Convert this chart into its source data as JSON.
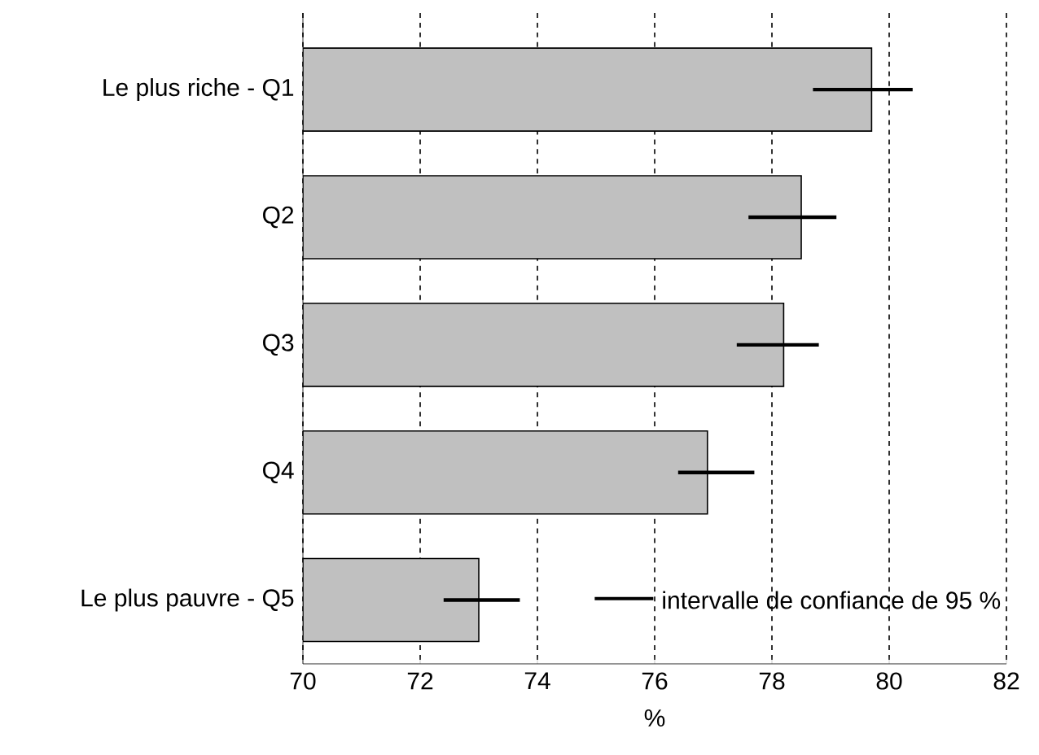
{
  "chart_data": {
    "type": "bar",
    "orientation": "horizontal",
    "categories": [
      "Le plus riche - Q1",
      "Q2",
      "Q3",
      "Q4",
      "Le plus pauvre - Q5"
    ],
    "values": [
      79.7,
      78.5,
      78.2,
      76.9,
      73.0
    ],
    "errors": [
      [
        78.7,
        80.4
      ],
      [
        77.6,
        79.1
      ],
      [
        77.4,
        78.8
      ],
      [
        76.4,
        77.7
      ],
      [
        72.4,
        73.7
      ]
    ],
    "color": "#c0c0c0",
    "xlim": [
      70,
      82
    ],
    "xticks": [
      70,
      72,
      74,
      76,
      78,
      80,
      82
    ],
    "xlabel": "%",
    "grid": "x",
    "annotations": [
      "intervalle de confiance de 95 %"
    ]
  }
}
